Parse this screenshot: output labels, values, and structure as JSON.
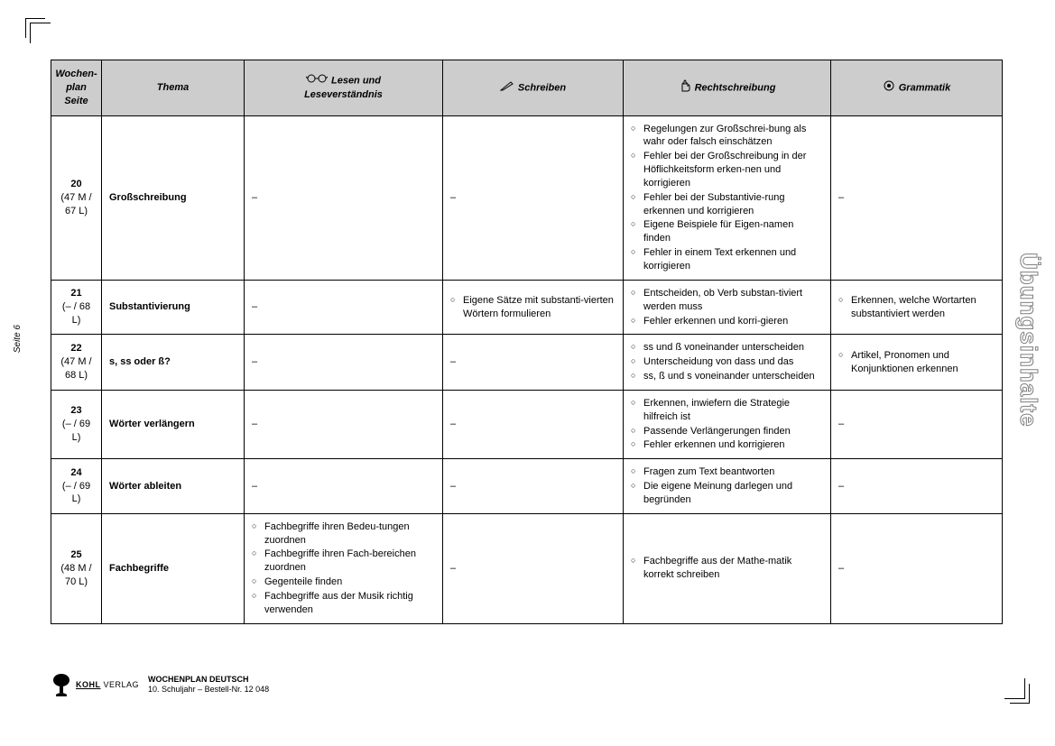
{
  "sideTitle": "Übungsinhalte",
  "pageNumLabel": "Seite 6",
  "header": {
    "seite": "Wochen-\nplan\nSeite",
    "thema": "Thema",
    "lesen": "Lesen und\nLeseverständnis",
    "schreiben": "Schreiben",
    "recht": "Rechtschreibung",
    "gram": "Grammatik"
  },
  "rows": [
    {
      "pnum": "20",
      "pages": "(47 M /\n67 L)",
      "thema": "Großschreibung",
      "lesen": "–",
      "schreiben": "–",
      "recht": [
        "Regelungen zur Großschrei-bung als wahr oder falsch einschätzen",
        "Fehler bei der Großschreibung in der Höflichkeitsform erken-nen und korrigieren",
        "Fehler bei der Substantivie-rung erkennen und korrigieren",
        "Eigene Beispiele für Eigen-namen finden",
        "Fehler in einem Text erkennen und korrigieren"
      ],
      "gram": "–"
    },
    {
      "pnum": "21",
      "pages": "(– / 68 L)",
      "thema": "Substantivierung",
      "lesen": "–",
      "schreiben": [
        "Eigene Sätze mit substanti-vierten Wörtern formulieren"
      ],
      "recht": [
        "Entscheiden, ob Verb substan-tiviert werden muss",
        "Fehler erkennen und korri-gieren"
      ],
      "gram": [
        "Erkennen, welche Wortarten substantiviert werden"
      ]
    },
    {
      "pnum": "22",
      "pages": "(47 M /\n68 L)",
      "thema": "s, ss oder ß?",
      "lesen": "–",
      "schreiben": "–",
      "recht": [
        "ss und ß voneinander unterscheiden",
        "Unterscheidung von dass und das",
        "ss, ß und s voneinander unterscheiden"
      ],
      "gram": [
        "Artikel, Pronomen und Konjunktionen erkennen"
      ]
    },
    {
      "pnum": "23",
      "pages": "(– / 69 L)",
      "thema": "Wörter verlängern",
      "lesen": "–",
      "schreiben": "–",
      "recht": [
        "Erkennen, inwiefern die Strategie hilfreich ist",
        "Passende Verlängerungen finden",
        "Fehler erkennen und korrigieren"
      ],
      "gram": "–"
    },
    {
      "pnum": "24",
      "pages": "(– / 69 L)",
      "thema": "Wörter ableiten",
      "lesen": "–",
      "schreiben": "–",
      "recht": [
        "Fragen zum Text beantworten",
        "Die eigene Meinung darlegen und begründen"
      ],
      "gram": "–"
    },
    {
      "pnum": "25",
      "pages": "(48 M /\n70 L)",
      "thema": "Fachbegriffe",
      "lesen": [
        "Fachbegriffe ihren Bedeu-tungen zuordnen",
        "Fachbegriffe ihren Fach-bereichen zuordnen",
        "Gegenteile finden",
        "Fachbegriffe aus der Musik richtig verwenden"
      ],
      "schreiben": "–",
      "recht": [
        "Fachbegriffe aus der Mathe-matik korrekt schreiben"
      ],
      "gram": "–"
    }
  ],
  "footer": {
    "publisher": "KOHL",
    "publisher2": "VERLAG",
    "line1": "WOCHENPLAN DEUTSCH",
    "line2": "10. Schuljahr   –   Bestell-Nr. 12 048"
  }
}
